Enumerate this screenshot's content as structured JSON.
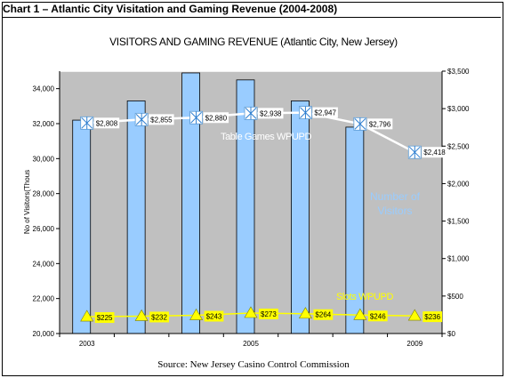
{
  "header": {
    "text": "Chart 1 – Atlantic City Visitation and Gaming Revenue (2004-2008)"
  },
  "source": "Source: New Jersey Casino Control Commission",
  "colors": {
    "plot_bg": "#c0c0c0",
    "bar_fill": "#99ccff",
    "bar_edge": "#000000",
    "table_line": "#ffffff",
    "slots_line": "#ffff00",
    "label_bg": "#ffffff",
    "slots_label_bg": "#ffff00",
    "legend_visitors": "#99ccff",
    "legend_slots": "#ffff00"
  },
  "chart_data": {
    "type": "bar+line",
    "title": "VISITORS AND GAMING REVENUE (Atlantic City, New Jersey)",
    "ylabel_left": "No of Visitors(Thous",
    "left_axis": {
      "min": 20000,
      "max": 35000,
      "ticks": [
        "20,000",
        "22,000",
        "24,000",
        "26,000",
        "28,000",
        "30,000",
        "32,000",
        "34,000"
      ],
      "tick_values": [
        20000,
        22000,
        24000,
        26000,
        28000,
        30000,
        32000,
        34000
      ]
    },
    "right_axis": {
      "min": 0,
      "max": 3500,
      "ticks": [
        "$0",
        "$500",
        "$1,000",
        "$1,500",
        "$2,000",
        "$2,500",
        "$3,000",
        "$3,500"
      ],
      "tick_values": [
        0,
        500,
        1000,
        1500,
        2000,
        2500,
        3000,
        3500
      ]
    },
    "x_tick_labels": [
      {
        "slot": 0,
        "label": "2003"
      },
      {
        "slot": 3,
        "label": "2005"
      },
      {
        "slot": 6,
        "label": "2009"
      }
    ],
    "visitors": {
      "name": "Number of Visitors",
      "values": [
        32200,
        33300,
        34900,
        34500,
        33300,
        31800,
        null
      ]
    },
    "table_games": {
      "name": "Table Games WPUPD",
      "values": [
        2808,
        2855,
        2880,
        2938,
        2947,
        2796,
        2418
      ],
      "labels": [
        "$2,808",
        "$2,855",
        "$2,880",
        "$2,938",
        "$2,947",
        "$2,796",
        "$2,418"
      ]
    },
    "slots": {
      "name": "Slots WPUPD",
      "values": [
        225,
        232,
        243,
        273,
        264,
        246,
        236
      ],
      "labels": [
        "$225",
        "$232",
        "$243",
        "$273",
        "$264",
        "$246",
        "$236"
      ]
    },
    "legend": {
      "visitors_line1": "Number of",
      "visitors_line2": "Visitors",
      "table_games": "Table Games WPUPD",
      "slots": "Slots WPUPD"
    }
  }
}
